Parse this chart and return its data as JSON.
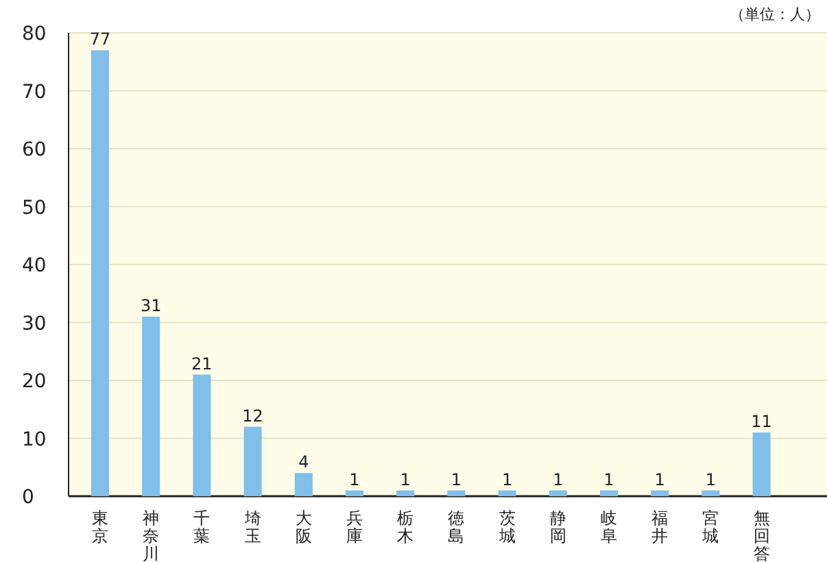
{
  "chart_data": {
    "type": "bar",
    "annotations": [
      "（単位：人）"
    ],
    "categories": [
      "東京",
      "神奈川",
      "千葉",
      "埼玉",
      "大阪",
      "兵庫",
      "栃木",
      "徳島",
      "茨城",
      "静岡",
      "岐阜",
      "福井",
      "宮城",
      "無回答"
    ],
    "values": [
      77,
      31,
      21,
      12,
      4,
      1,
      1,
      1,
      1,
      1,
      1,
      1,
      1,
      11
    ],
    "color": "#7fbfe9",
    "ylim": [
      0,
      80
    ],
    "yticks": [
      0,
      10,
      20,
      30,
      40,
      50,
      60,
      70,
      80
    ],
    "grid": "y",
    "data_labels": true
  }
}
